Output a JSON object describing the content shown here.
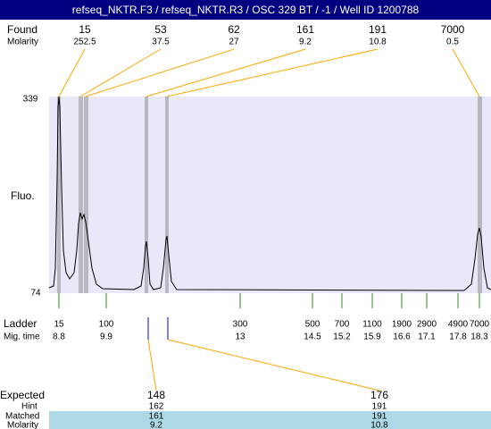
{
  "header": {
    "title": "refseq_NKTR.F3 / refseq_NKTR.R3 / OSC 329 BT / -1 / Well ID 1200788"
  },
  "found": {
    "label": "Found",
    "sizes": [
      15,
      53,
      62,
      161,
      191,
      7000
    ],
    "molarity_label": "Molarity",
    "molarity": [
      252.5,
      37.5,
      27,
      9.2,
      10.8,
      0.5
    ]
  },
  "axis": {
    "label": "Fluo.",
    "max": 339,
    "min": 74
  },
  "ladder": {
    "label": "Ladder",
    "sizes": [
      15,
      100,
      300,
      500,
      700,
      1100,
      1900,
      2900,
      4900,
      7000
    ],
    "mig_time_label": "Mig. time",
    "mig_times": [
      8.8,
      9.9,
      13,
      14.5,
      15.2,
      15.9,
      16.6,
      17.1,
      17.8,
      18.3
    ]
  },
  "expected": {
    "label": "Expected",
    "values": [
      148,
      176
    ],
    "hint_label": "Hint",
    "hint": [
      162,
      191
    ],
    "matched_label": "Matched",
    "matched": [
      161,
      191
    ],
    "molarity_label": "Molarity",
    "molarity": [
      9.2,
      10.8
    ]
  }
}
